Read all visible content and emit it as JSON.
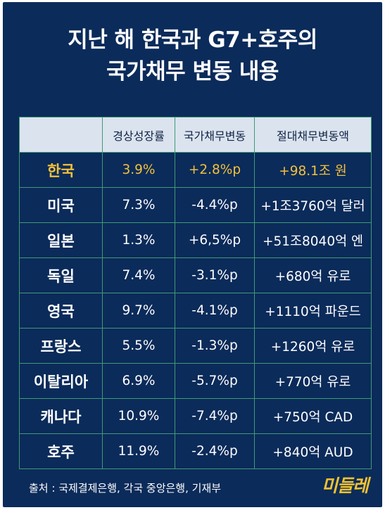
{
  "title": {
    "line1": "지난 해 한국과 G7+호주의",
    "line2": "국가채무 변동 내용"
  },
  "table": {
    "headers": [
      "",
      "경상성장률",
      "국가채무변동",
      "절대채무변동액"
    ],
    "rows": [
      {
        "country": "한국",
        "growth": "3.9%",
        "debt_change": "+2.8%p",
        "absolute": "+98.1조 원"
      },
      {
        "country": "미국",
        "growth": "7.3%",
        "debt_change": "-4.4%p",
        "absolute": "+1조3760억 달러"
      },
      {
        "country": "일본",
        "growth": "1.3%",
        "debt_change": "+6,5%p",
        "absolute": "+51조8040억 엔"
      },
      {
        "country": "독일",
        "growth": "7.4%",
        "debt_change": "-3.1%p",
        "absolute": "+680억 유로"
      },
      {
        "country": "영국",
        "growth": "9.7%",
        "debt_change": "-4.1%p",
        "absolute": "+1110억 파운드"
      },
      {
        "country": "프랑스",
        "growth": "5.5%",
        "debt_change": "-1.3%p",
        "absolute": "+1260억 유로"
      },
      {
        "country": "이탈리아",
        "growth": "6.9%",
        "debt_change": "-5.7%p",
        "absolute": "+770억 유로"
      },
      {
        "country": "캐나다",
        "growth": "10.9%",
        "debt_change": "-7.4%p",
        "absolute": "+750억 CAD"
      },
      {
        "country": "호주",
        "growth": "11.9%",
        "debt_change": "-2.4%p",
        "absolute": "+840억 AUD"
      }
    ]
  },
  "source": "출처 : 국제결제은행, 각국 중앙은행, 기재부",
  "logo_text": "미들레",
  "colors": {
    "background": "#0b2b5a",
    "border": "#3f9a76",
    "header_bg": "#dbe3ee",
    "highlight": "#f3c13a",
    "logo": "#f2c230"
  }
}
